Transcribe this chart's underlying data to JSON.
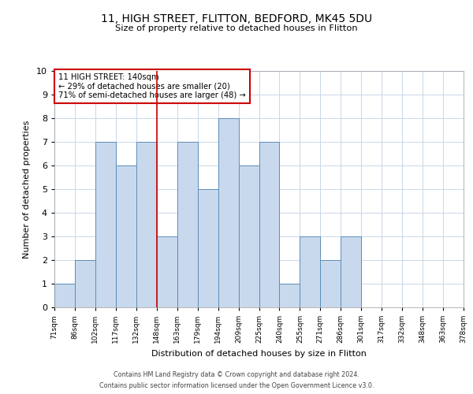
{
  "title_line1": "11, HIGH STREET, FLITTON, BEDFORD, MK45 5DU",
  "title_line2": "Size of property relative to detached houses in Flitton",
  "xlabel": "Distribution of detached houses by size in Flitton",
  "ylabel": "Number of detached properties",
  "bin_labels": [
    "71sqm",
    "86sqm",
    "102sqm",
    "117sqm",
    "132sqm",
    "148sqm",
    "163sqm",
    "179sqm",
    "194sqm",
    "209sqm",
    "225sqm",
    "240sqm",
    "255sqm",
    "271sqm",
    "286sqm",
    "301sqm",
    "317sqm",
    "332sqm",
    "348sqm",
    "363sqm",
    "378sqm"
  ],
  "counts": [
    1,
    2,
    7,
    6,
    7,
    3,
    7,
    5,
    8,
    6,
    7,
    1,
    3,
    2,
    3,
    0,
    0,
    0,
    0,
    0
  ],
  "bar_color": "#c9d9ed",
  "bar_edge_color": "#5b8db8",
  "grid_color": "#c8d8e8",
  "ref_bar_index": 4,
  "ref_line_color": "#cc0000",
  "annotation_box_text": "11 HIGH STREET: 140sqm\n← 29% of detached houses are smaller (20)\n71% of semi-detached houses are larger (48) →",
  "annotation_box_color": "#cc0000",
  "ylim": [
    0,
    10
  ],
  "yticks": [
    0,
    1,
    2,
    3,
    4,
    5,
    6,
    7,
    8,
    9,
    10
  ],
  "footer_line1": "Contains HM Land Registry data © Crown copyright and database right 2024.",
  "footer_line2": "Contains public sector information licensed under the Open Government Licence v3.0.",
  "fig_width": 6.0,
  "fig_height": 5.0,
  "fig_dpi": 100
}
